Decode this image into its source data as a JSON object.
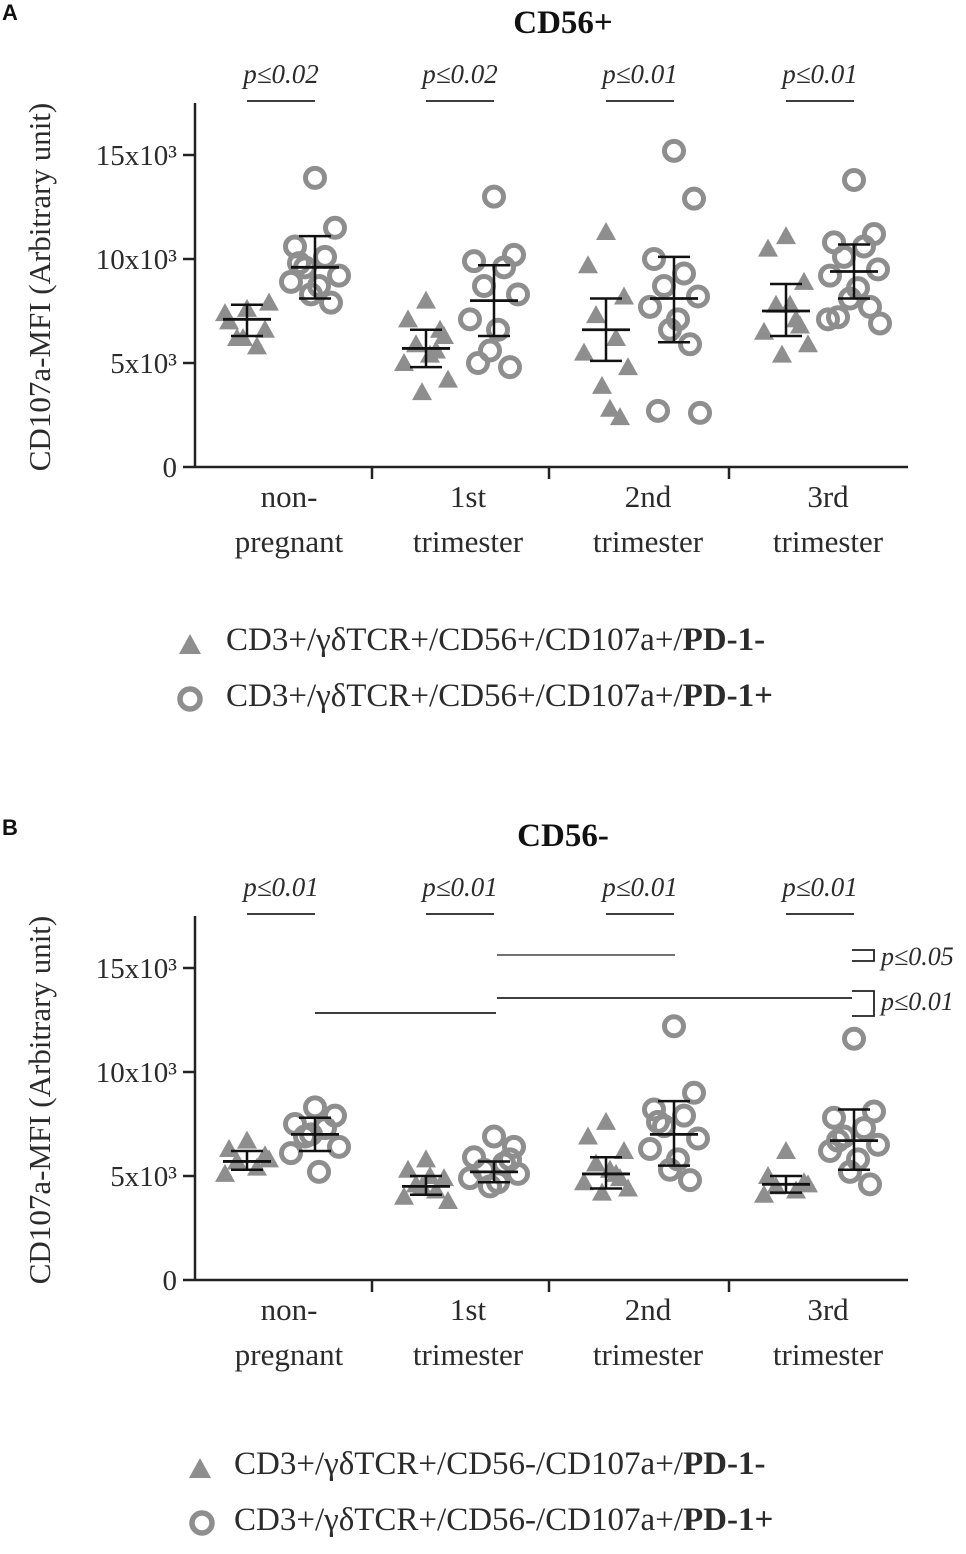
{
  "chart_data": [
    {
      "panel_label": "A",
      "type": "scatter",
      "title": "CD56+",
      "ylabel": "CD107a-MFI (Arbitrary unit)",
      "ylim": [
        0,
        17500
      ],
      "y_ticks": [
        {
          "value": 0,
          "label": "0"
        },
        {
          "value": 5000,
          "label": "5x10³"
        },
        {
          "value": 10000,
          "label": "10x10³"
        },
        {
          "value": 15000,
          "label": "15x10³"
        }
      ],
      "categories": [
        [
          "non-",
          "pregnant"
        ],
        [
          "1st",
          "trimester"
        ],
        [
          "2nd",
          "trimester"
        ],
        [
          "3rd",
          "trimester"
        ]
      ],
      "series": [
        {
          "name_prefix": "CD3+/γδTCR+/CD56+/CD107a+/",
          "name_bold": "PD-1-",
          "marker": "triangle",
          "points": [
            [
              7600,
              7000,
              6600,
              6200,
              5800,
              7400,
              7900,
              6200
            ],
            [
              8000,
              7100,
              6300,
              5900,
              5600,
              5000,
              4200,
              3600,
              5400,
              6600
            ],
            [
              11300,
              9700,
              8200,
              7300,
              6200,
              5500,
              4800,
              3900,
              2800,
              2400
            ],
            [
              11100,
              10500,
              8900,
              7800,
              7100,
              6500,
              5900,
              5400,
              7800,
              6800
            ]
          ],
          "mean": [
            7100,
            5700,
            6600,
            7500
          ],
          "error": [
            [
              6300,
              7800
            ],
            [
              4800,
              6600
            ],
            [
              5100,
              8100
            ],
            [
              6300,
              8800
            ]
          ]
        },
        {
          "name_prefix": "CD3+/γδTCR+/CD56+/CD107a+/",
          "name_bold": "PD-1+",
          "marker": "circle",
          "points": [
            [
              13900,
              11500,
              10600,
              10100,
              9600,
              9200,
              8900,
              8700,
              8300,
              7900,
              9800
            ],
            [
              13000,
              10200,
              9900,
              9600,
              8700,
              8300,
              7100,
              6600,
              5600,
              4800,
              5000
            ],
            [
              15200,
              12900,
              10000,
              9300,
              8700,
              8200,
              7700,
              7100,
              6600,
              5900,
              2700,
              2600
            ],
            [
              13800,
              11200,
              10800,
              10600,
              10100,
              9500,
              9200,
              8600,
              8100,
              7700,
              7200,
              6900,
              7100
            ]
          ],
          "mean": [
            9600,
            8000,
            8100,
            9400
          ],
          "error": [
            [
              8100,
              11100
            ],
            [
              6300,
              9700
            ],
            [
              6000,
              10100
            ],
            [
              8100,
              10700
            ]
          ]
        }
      ],
      "annotations": [
        "p≤0.02",
        "p≤0.02",
        "p≤0.01",
        "p≤0.01"
      ]
    },
    {
      "panel_label": "B",
      "type": "scatter",
      "title": "CD56-",
      "ylabel": "CD107a-MFI (Arbitrary unit)",
      "ylim": [
        0,
        17500
      ],
      "y_ticks": [
        {
          "value": 0,
          "label": "0"
        },
        {
          "value": 5000,
          "label": "5x10³"
        },
        {
          "value": 10000,
          "label": "10x10³"
        },
        {
          "value": 15000,
          "label": "15x10³"
        }
      ],
      "categories": [
        [
          "non-",
          "pregnant"
        ],
        [
          "1st",
          "trimester"
        ],
        [
          "2nd",
          "trimester"
        ],
        [
          "3rd",
          "trimester"
        ]
      ],
      "series": [
        {
          "name_prefix": "CD3+/γδTCR+/CD56-/CD107a+/",
          "name_bold": "PD-1-",
          "marker": "triangle",
          "points": [
            [
              6700,
              6300,
              6000,
              5700,
              5400,
              5100,
              5800
            ],
            [
              5800,
              5300,
              4900,
              4600,
              4300,
              4000,
              3800,
              4500,
              5000
            ],
            [
              7600,
              6900,
              6200,
              5600,
              5100,
              4700,
              4400,
              4200,
              5300,
              4900
            ],
            [
              6200,
              5000,
              4700,
              4500,
              4300,
              4100,
              4600
            ]
          ],
          "mean": [
            5700,
            4500,
            5100,
            4600
          ],
          "error": [
            [
              5300,
              6200
            ],
            [
              4100,
              5000
            ],
            [
              4400,
              5900
            ],
            [
              4200,
              5000
            ]
          ]
        },
        {
          "name_prefix": "CD3+/γδTCR+/CD56-/CD107a+/",
          "name_bold": "PD-1+",
          "marker": "circle",
          "points": [
            [
              8300,
              7900,
              7500,
              7300,
              6900,
              6400,
              6100,
              5200,
              7000
            ],
            [
              6900,
              6400,
              5900,
              5600,
              5300,
              5100,
              4900,
              4700,
              4500,
              5800
            ],
            [
              12200,
              9000,
              8200,
              7900,
              7400,
              6800,
              6300,
              5800,
              5300,
              4800,
              7600
            ],
            [
              11600,
              8100,
              7800,
              7300,
              6900,
              6500,
              6200,
              5800,
              5200,
              4600,
              6700
            ]
          ],
          "mean": [
            7000,
            5200,
            7000,
            6700
          ],
          "error": [
            [
              6200,
              7800
            ],
            [
              4700,
              5700
            ],
            [
              5500,
              8600
            ],
            [
              5300,
              8200
            ]
          ]
        }
      ],
      "annotations": [
        "p≤0.01",
        "p≤0.01",
        "p≤0.01",
        "p≤0.01",
        "p≤0.05",
        "p≤0.01"
      ]
    }
  ]
}
